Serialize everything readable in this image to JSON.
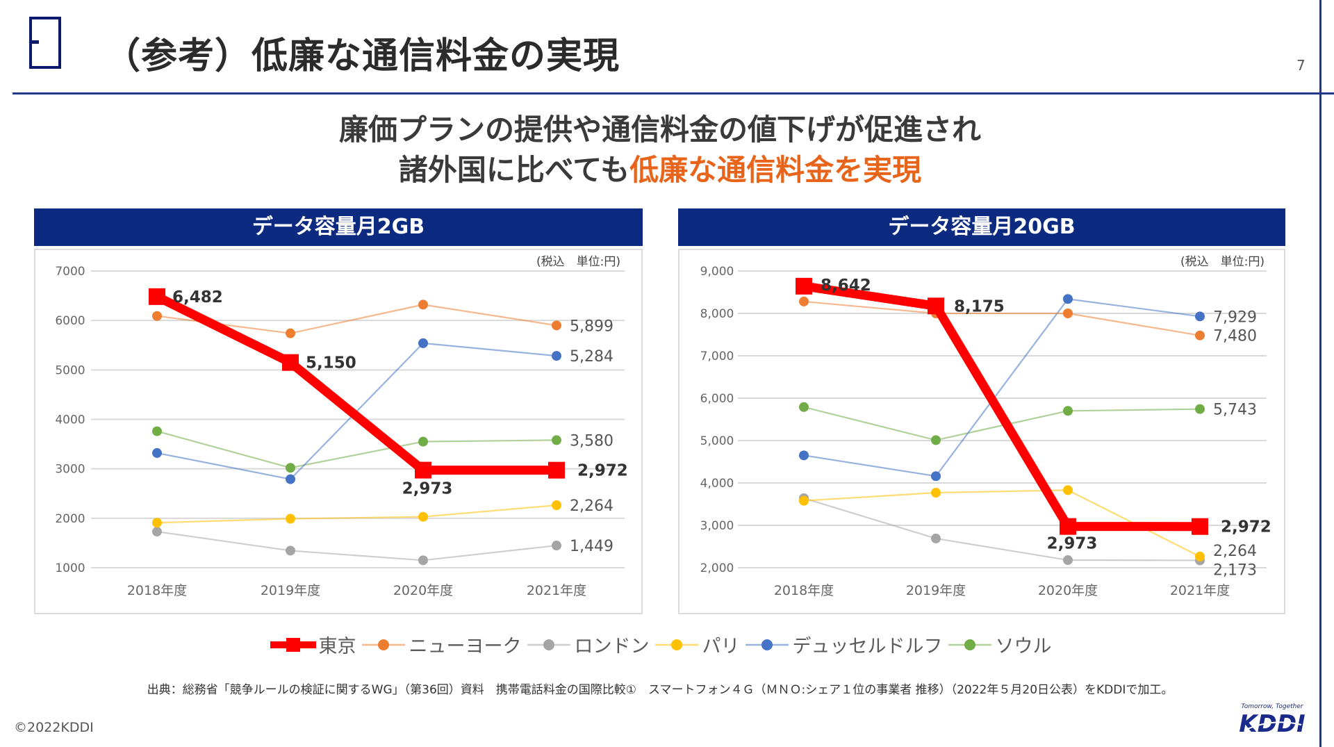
{
  "slide": {
    "title": "（参考）低廉な通信料金の実現",
    "page_number": "7",
    "headline_line1": "廉価プランの提供や通信料金の値下げが促進され",
    "headline_line2_plain": "諸外国に比べても",
    "headline_line2_accent": "低廉な通信料金を実現",
    "accent_color": "#e8641b",
    "source_note": "出典：総務省「競争ルールの検証に関するWG」（第36回）資料　携帯電話料金の国際比較①　スマートフォン４Ｇ（ＭＮＯ:シェア１位の事業者 推移）（2022年５月20日公表）をKDDIで加工。",
    "copyright": "©2022KDDI",
    "logo_tagline": "Tomorrow, Together",
    "logo_text": "KDDI"
  },
  "legend": [
    {
      "name": "東京",
      "color": "#ff0000",
      "marker": "square"
    },
    {
      "name": "ニューヨーク",
      "color": "#ed7d31",
      "marker": "circle"
    },
    {
      "name": "ロンドン",
      "color": "#a5a5a5",
      "marker": "circle"
    },
    {
      "name": "パリ",
      "color": "#ffc000",
      "marker": "circle"
    },
    {
      "name": "デュッセルドルフ",
      "color": "#4472c4",
      "marker": "circle"
    },
    {
      "name": "ソウル",
      "color": "#70ad47",
      "marker": "circle"
    }
  ],
  "chart_data": [
    {
      "type": "line",
      "title": "データ容量月2GB",
      "unit_note": "(税込　単位:円)",
      "categories": [
        "2018年度",
        "2019年度",
        "2020年度",
        "2021年度"
      ],
      "ylim": [
        1000,
        7000
      ],
      "yticks": [
        1000,
        2000,
        3000,
        4000,
        5000,
        6000,
        7000
      ],
      "ytick_labels": [
        "1000",
        "2000",
        "3000",
        "4000",
        "5000",
        "6000",
        "7000"
      ],
      "grid": true,
      "legend_position": "bottom",
      "series": [
        {
          "name": "ロンドン",
          "color": "#a5a5a5",
          "values": [
            1730,
            1345,
            1150,
            1449
          ],
          "labels": [
            null,
            null,
            null,
            "1,449"
          ]
        },
        {
          "name": "パリ",
          "color": "#ffc000",
          "values": [
            1910,
            1990,
            2030,
            2264
          ],
          "labels": [
            null,
            null,
            null,
            "2,264"
          ]
        },
        {
          "name": "ソウル",
          "color": "#70ad47",
          "values": [
            3760,
            3020,
            3550,
            3580
          ],
          "labels": [
            null,
            null,
            null,
            "3,580"
          ]
        },
        {
          "name": "デュッセルドルフ",
          "color": "#4472c4",
          "values": [
            3320,
            2790,
            5540,
            5284
          ],
          "labels": [
            null,
            null,
            null,
            "5,284"
          ]
        },
        {
          "name": "ニューヨーク",
          "color": "#ed7d31",
          "values": [
            6090,
            5740,
            6320,
            5899
          ],
          "labels": [
            null,
            null,
            null,
            "5,899"
          ]
        },
        {
          "name": "東京",
          "color": "#ff0000",
          "values": [
            6482,
            5150,
            2973,
            2972
          ],
          "labels": [
            "6,482",
            "5,150",
            "2,973",
            "2,972"
          ],
          "highlight": true
        }
      ]
    },
    {
      "type": "line",
      "title": "データ容量月20GB",
      "unit_note": "(税込　単位:円)",
      "categories": [
        "2018年度",
        "2019年度",
        "2020年度",
        "2021年度"
      ],
      "ylim": [
        2000,
        9000
      ],
      "yticks": [
        2000,
        3000,
        4000,
        5000,
        6000,
        7000,
        8000,
        9000
      ],
      "ytick_labels": [
        "2,000",
        "3,000",
        "4,000",
        "5,000",
        "6,000",
        "7,000",
        "8,000",
        "9,000"
      ],
      "grid": true,
      "legend_position": "bottom",
      "series": [
        {
          "name": "ロンドン",
          "color": "#a5a5a5",
          "values": [
            3640,
            2690,
            2180,
            2173
          ],
          "labels": [
            null,
            null,
            null,
            "2,173"
          ]
        },
        {
          "name": "パリ",
          "color": "#ffc000",
          "values": [
            3580,
            3770,
            3830,
            2264
          ],
          "labels": [
            null,
            null,
            null,
            "2,264"
          ]
        },
        {
          "name": "ソウル",
          "color": "#70ad47",
          "values": [
            5790,
            5010,
            5700,
            5743
          ],
          "labels": [
            null,
            null,
            null,
            "5,743"
          ]
        },
        {
          "name": "デュッセルドルフ",
          "color": "#4472c4",
          "values": [
            4650,
            4160,
            8340,
            7929
          ],
          "labels": [
            null,
            null,
            null,
            "7,929"
          ]
        },
        {
          "name": "ニューヨーク",
          "color": "#ed7d31",
          "values": [
            8280,
            8000,
            8000,
            7480
          ],
          "labels": [
            null,
            null,
            null,
            "7,480"
          ]
        },
        {
          "name": "東京",
          "color": "#ff0000",
          "values": [
            8642,
            8175,
            2973,
            2972
          ],
          "labels": [
            "8,642",
            "8,175",
            "2,973",
            "2,972"
          ],
          "highlight": true
        }
      ]
    }
  ]
}
